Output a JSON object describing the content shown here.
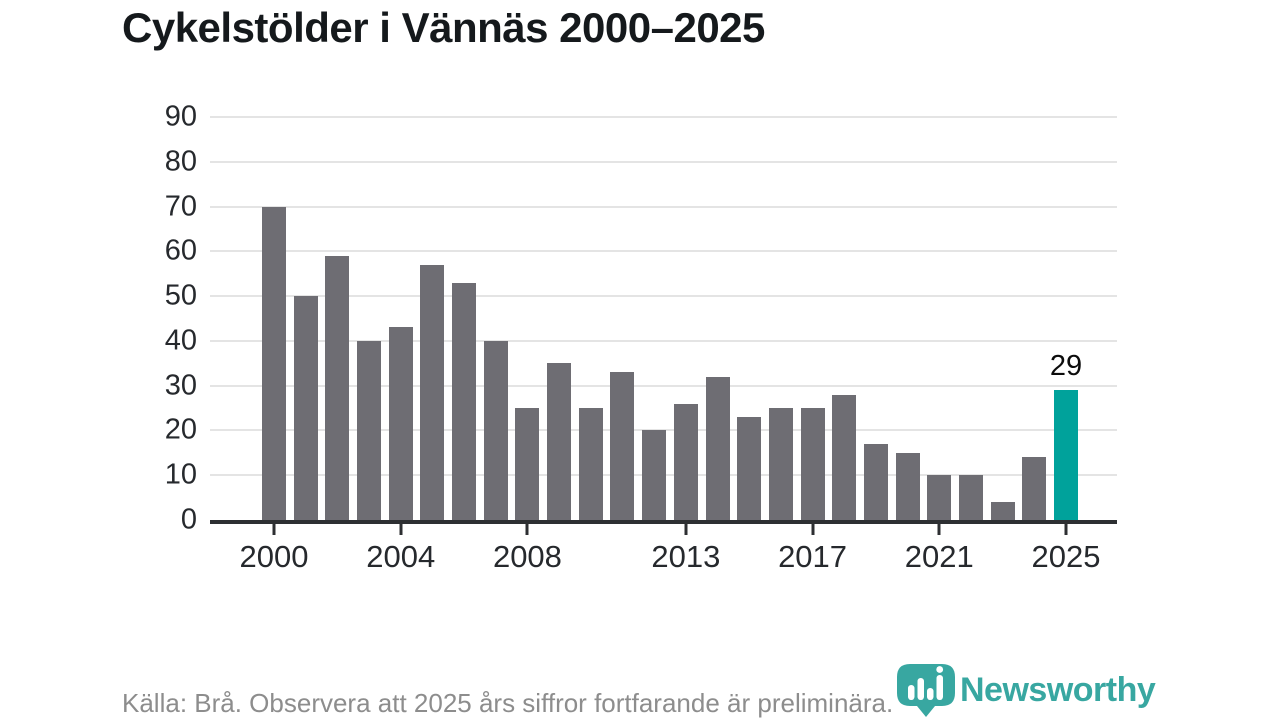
{
  "title": "Cykelstölder i Vännäs 2000–2025",
  "footer": {
    "source": "Källa: Brå. Observera att 2025 års siffror fortfarande är preliminära.",
    "brand": "Newsworthy",
    "brand_color": "#38a7a1"
  },
  "chart_data": {
    "type": "bar",
    "title": "Cykelstölder i Vännäs 2000–2025",
    "x": [
      2000,
      2001,
      2002,
      2003,
      2004,
      2005,
      2006,
      2007,
      2008,
      2009,
      2010,
      2011,
      2012,
      2013,
      2014,
      2015,
      2016,
      2017,
      2018,
      2019,
      2020,
      2021,
      2022,
      2023,
      2024,
      2025
    ],
    "values": [
      70,
      50,
      59,
      40,
      43,
      57,
      53,
      40,
      25,
      35,
      25,
      33,
      20,
      26,
      32,
      23,
      25,
      25,
      28,
      17,
      15,
      10,
      10,
      4,
      14,
      29
    ],
    "xtick_years": [
      2000,
      2004,
      2008,
      2013,
      2017,
      2021,
      2025
    ],
    "xlabel": "",
    "ylabel": "",
    "ylim": [
      0,
      90
    ],
    "ytick_step": 10,
    "grid": "horizontal",
    "legend": "none",
    "highlight_x": 2025,
    "bar_color": "#6e6d73",
    "highlight_color": "#00a29b",
    "annotations": [
      {
        "x": 2025,
        "label": "29"
      }
    ]
  }
}
